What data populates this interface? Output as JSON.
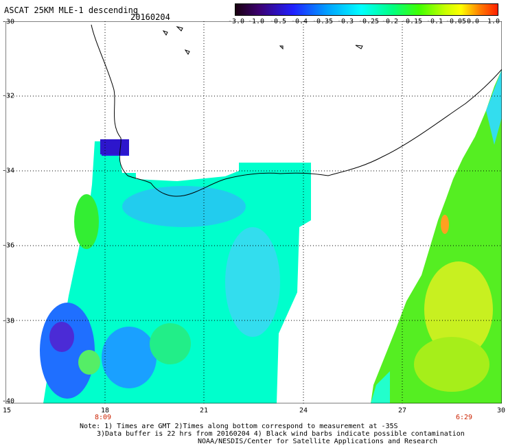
{
  "header": {
    "title": "ASCAT 25KM MLE-1 descending",
    "date": "20160204"
  },
  "colorbar": {
    "ticks": [
      "-3.0",
      "-1.0",
      "-0.5",
      "-0.4",
      "-0.35",
      "-0.3",
      "-0.25",
      "-0.2",
      "-0.15",
      "-0.1",
      "-0.05",
      "0.0",
      "1.0"
    ]
  },
  "axes": {
    "y_labels": [
      "-30",
      "-32",
      "-34",
      "-36",
      "-38",
      "-40"
    ],
    "x_labels": [
      "15",
      "18",
      "21",
      "24",
      "27",
      "30"
    ]
  },
  "swath_times": [
    "8:09",
    "6:29"
  ],
  "notes": {
    "line1": "Note: 1) Times are GMT 2)Times along bottom correspond to measurement at -35S",
    "line2": "3)Data buffer is 22 hrs from 20160204 4) Black wind barbs indicate possible contamination",
    "line3": "NOAA/NESDIS/Center for Satellite Applications and Research"
  }
}
